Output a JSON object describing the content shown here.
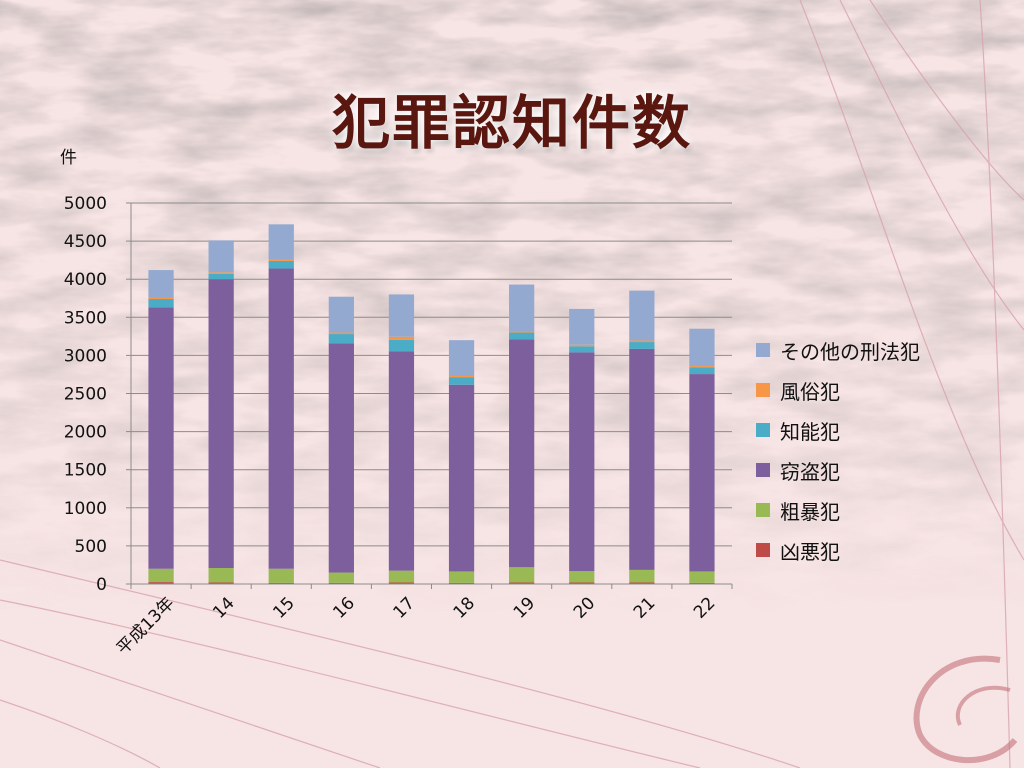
{
  "slide": {
    "title": "犯罪認知件数"
  },
  "chart_data": {
    "type": "bar",
    "stacked": true,
    "ylabel": "件",
    "ylim": [
      0,
      5000
    ],
    "yticks": [
      0,
      500,
      1000,
      1500,
      2000,
      2500,
      3000,
      3500,
      4000,
      4500,
      5000
    ],
    "categories": [
      "平成13年",
      "14",
      "15",
      "16",
      "17",
      "18",
      "19",
      "20",
      "21",
      "22"
    ],
    "grid": true,
    "legend_position": "right",
    "series": [
      {
        "name": "凶悪犯",
        "color": "#be4b48",
        "values": [
          25,
          20,
          15,
          15,
          20,
          15,
          20,
          20,
          20,
          15
        ]
      },
      {
        "name": "粗暴犯",
        "color": "#98b954",
        "values": [
          175,
          190,
          185,
          135,
          155,
          150,
          200,
          150,
          165,
          150
        ]
      },
      {
        "name": "窃盗犯",
        "color": "#7d5f9e",
        "values": [
          3430,
          3790,
          3940,
          3010,
          2880,
          2450,
          2990,
          2870,
          2900,
          2590
        ]
      },
      {
        "name": "知能犯",
        "color": "#4aacc6",
        "values": [
          110,
          70,
          100,
          120,
          150,
          100,
          90,
          80,
          90,
          90
        ]
      },
      {
        "name": "風俗犯",
        "color": "#f79646",
        "values": [
          20,
          20,
          25,
          20,
          40,
          15,
          20,
          20,
          20,
          15
        ]
      },
      {
        "name": "その他の刑法犯",
        "color": "#93a9d0",
        "values": [
          360,
          420,
          455,
          470,
          555,
          470,
          610,
          470,
          655,
          490
        ]
      }
    ]
  }
}
